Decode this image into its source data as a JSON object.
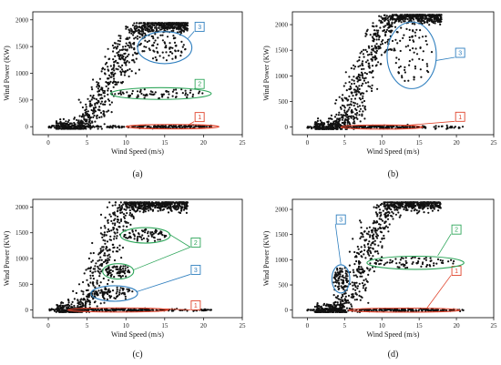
{
  "colors": {
    "point": "#111111",
    "region_1": "#e0442c",
    "region_2": "#2ea65a",
    "region_3": "#2f7fbf",
    "axis": "#000000"
  },
  "chart_data": [
    {
      "type": "scatter",
      "caption": "(a)",
      "xlabel": "Wind Speed (m/s)",
      "ylabel": "Wind Power (KW)",
      "xlim": [
        -2,
        25
      ],
      "ylim": [
        -150,
        2150
      ],
      "xticks": [
        "0",
        "5",
        "10",
        "15",
        "20",
        "25"
      ],
      "yticks": [
        "0",
        "500",
        "1000",
        "1500",
        "2000"
      ],
      "curve": {
        "start": 3.5,
        "rated_speed": 13,
        "rated_power": 1900
      },
      "regions": [
        {
          "label": "1",
          "cx": 16,
          "cy": 0,
          "rx": 6,
          "ry": 40,
          "badge_x": 19.5,
          "badge_y": 180,
          "line_to": [
            18,
            30
          ]
        },
        {
          "label": "2",
          "cx": 14.5,
          "cy": 620,
          "rx": 6.5,
          "ry": 110,
          "badge_x": 19.5,
          "badge_y": 800,
          "line_to": [
            19,
            700
          ]
        },
        {
          "label": "3",
          "cx": 15,
          "cy": 1480,
          "rx": 3.5,
          "ry": 300,
          "badge_x": 19.5,
          "badge_y": 1870,
          "line_to": [
            18,
            1650
          ]
        }
      ]
    },
    {
      "type": "scatter",
      "caption": "(b)",
      "xlabel": "Wind Speed (m/s)",
      "ylabel": "Wind Power (KW)",
      "xlim": [
        -2,
        25
      ],
      "ylim": [
        -150,
        2250
      ],
      "xticks": [
        "0",
        "5",
        "10",
        "15",
        "20",
        "25"
      ],
      "yticks": [
        "0",
        "500",
        "1000",
        "1500",
        "2000"
      ],
      "curve": {
        "start": 3.5,
        "rated_speed": 12,
        "rated_power": 2150
      },
      "regions": [
        {
          "label": "1",
          "cx": 10,
          "cy": 0,
          "rx": 5.5,
          "ry": 40,
          "badge_x": 20.5,
          "badge_y": 200,
          "line_to": [
            13,
            30
          ]
        },
        {
          "label": "3",
          "cx": 14,
          "cy": 1400,
          "rx": 3.3,
          "ry": 650,
          "badge_x": 20.5,
          "badge_y": 1450,
          "line_to": [
            17.3,
            1300
          ]
        }
      ]
    },
    {
      "type": "scatter",
      "caption": "(c)",
      "xlabel": "Wind Speed (m/s)",
      "ylabel": "Wind Power (KW)",
      "xlim": [
        -2,
        25
      ],
      "ylim": [
        -150,
        2150
      ],
      "xticks": [
        "0",
        "5",
        "10",
        "15",
        "20",
        "25"
      ],
      "yticks": [
        "0",
        "500",
        "1000",
        "1500",
        "2000"
      ],
      "curve": {
        "start": 3.5,
        "rated_speed": 11,
        "rated_power": 2050
      },
      "regions": [
        {
          "label": "1",
          "cx": 9,
          "cy": 0,
          "rx": 6.5,
          "ry": 40,
          "badge_x": 19,
          "badge_y": 90,
          "line_to": [
            13,
            30
          ]
        },
        {
          "label": "2",
          "cx": 12.5,
          "cy": 1450,
          "rx": 3.2,
          "ry": 150,
          "badge_x": 19,
          "badge_y": 1310,
          "line_to": [
            15.5,
            1480
          ]
        },
        {
          "label": "2",
          "cx": 9,
          "cy": 750,
          "rx": 2,
          "ry": 150,
          "badge_x": 19,
          "badge_y": 1310,
          "line_to": [
            11,
            780
          ]
        },
        {
          "label": "3",
          "cx": 8.5,
          "cy": 320,
          "rx": 3,
          "ry": 150,
          "badge_x": 19,
          "badge_y": 780,
          "line_to": [
            11.3,
            350
          ]
        }
      ]
    },
    {
      "type": "scatter",
      "caption": "(d)",
      "xlabel": "Wind Speed (m/s)",
      "ylabel": "Wind Power (KW)",
      "xlim": [
        -2,
        25
      ],
      "ylim": [
        -150,
        2200
      ],
      "xticks": [
        "0",
        "5",
        "10",
        "15",
        "20",
        "25"
      ],
      "yticks": [
        "0",
        "500",
        "1000",
        "1500",
        "2000"
      ],
      "curve": {
        "start": 3.5,
        "rated_speed": 12,
        "rated_power": 2100
      },
      "regions": [
        {
          "label": "1",
          "cx": 13,
          "cy": 0,
          "rx": 7.5,
          "ry": 40,
          "badge_x": 20,
          "badge_y": 780,
          "line_to": [
            16,
            30
          ]
        },
        {
          "label": "2",
          "cx": 14.5,
          "cy": 940,
          "rx": 6.5,
          "ry": 130,
          "badge_x": 20,
          "badge_y": 1600,
          "line_to": [
            17.5,
            1080
          ]
        },
        {
          "label": "3",
          "cx": 4.5,
          "cy": 620,
          "rx": 1.2,
          "ry": 280,
          "badge_x": 4.5,
          "badge_y": 1800,
          "line_to": [
            4.5,
            900
          ]
        }
      ]
    }
  ]
}
